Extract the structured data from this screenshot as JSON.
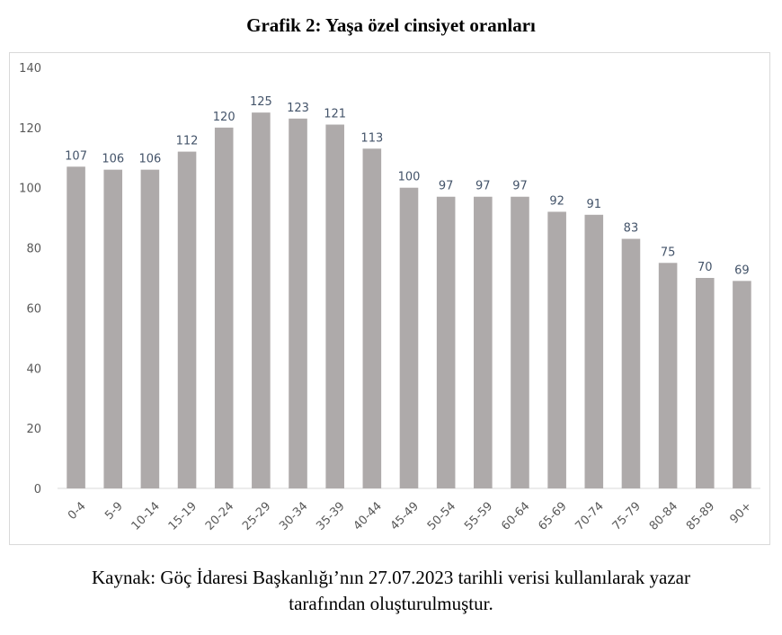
{
  "title": "Grafik 2: Yaşa özel cinsiyet oranları",
  "caption_line1": "Kaynak: Göç İdaresi Başkanlığı’nın 27.07.2023 tarihli verisi kullanılarak yazar",
  "caption_line2": "tarafından oluşturulmuştur.",
  "colors": {
    "bar": "#aeaaaa",
    "axis": "#d9d9d9",
    "tick_text": "#595959",
    "label_text": "#44546a"
  },
  "chart_data": {
    "type": "bar",
    "title": "Grafik 2: Yaşa özel cinsiyet oranları",
    "categories": [
      "0-4",
      "5-9",
      "10-14",
      "15-19",
      "20-24",
      "25-29",
      "30-34",
      "35-39",
      "40-44",
      "45-49",
      "50-54",
      "55-59",
      "60-64",
      "65-69",
      "70-74",
      "75-79",
      "80-84",
      "85-89",
      "90+"
    ],
    "values": [
      107,
      106,
      106,
      112,
      120,
      125,
      123,
      121,
      113,
      100,
      97,
      97,
      97,
      92,
      91,
      83,
      75,
      70,
      69
    ],
    "yticks": [
      "0",
      "20",
      "40",
      "60",
      "80",
      "100",
      "120",
      "140"
    ],
    "ylim": [
      0,
      140
    ],
    "grid": false,
    "legend": "none",
    "xlabel": "",
    "ylabel": ""
  }
}
